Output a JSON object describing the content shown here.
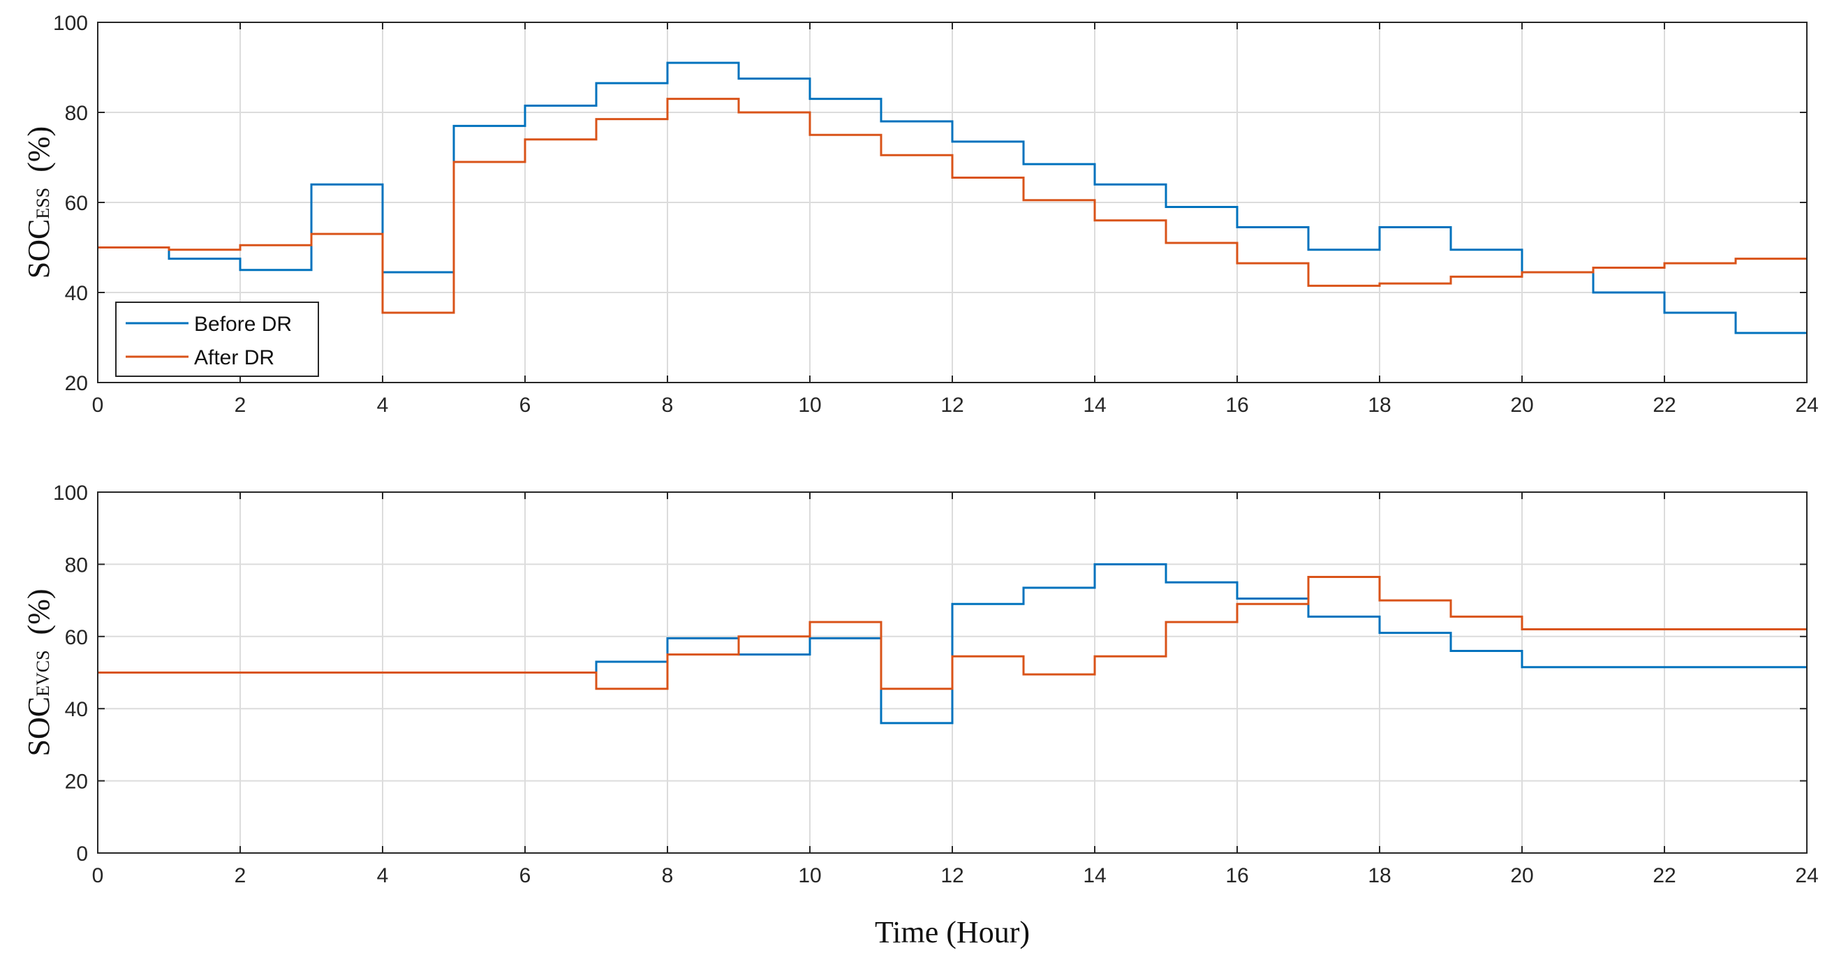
{
  "chart_data": [
    {
      "type": "line",
      "step": true,
      "ylabel_main": "SOC",
      "ylabel_sub": "ESS",
      "ylabel_unit": "(%)",
      "xlim": [
        0,
        24
      ],
      "ylim": [
        20,
        100
      ],
      "xticks": [
        0,
        2,
        4,
        6,
        8,
        10,
        12,
        14,
        16,
        18,
        20,
        22,
        24
      ],
      "yticks": [
        20,
        40,
        60,
        80,
        100
      ],
      "grid": true,
      "legend": {
        "position": "bottom-left",
        "entries": [
          "Before DR",
          "After DR"
        ]
      },
      "series": [
        {
          "name": "Before DR",
          "color": "#0072BD",
          "values": [
            50,
            47.5,
            45,
            64,
            44.5,
            77,
            81.5,
            86.5,
            91,
            87.5,
            83,
            78,
            73.5,
            68.5,
            64,
            59,
            54.5,
            49.5,
            54.5,
            49.5,
            44.5,
            40,
            35.5,
            31
          ]
        },
        {
          "name": "After DR",
          "color": "#D95319",
          "values": [
            50,
            49.5,
            50.5,
            53,
            35.5,
            69,
            74,
            78.5,
            83,
            80,
            75,
            70.5,
            65.5,
            60.5,
            56,
            51,
            46.5,
            41.5,
            42,
            43.5,
            44.5,
            45.5,
            46.5,
            47.5
          ]
        }
      ]
    },
    {
      "type": "line",
      "step": true,
      "ylabel_main": "SOC",
      "ylabel_sub": "EVCS",
      "ylabel_unit": "(%)",
      "xlabel": "Time (Hour)",
      "xlim": [
        0,
        24
      ],
      "ylim": [
        0,
        100
      ],
      "xticks": [
        0,
        2,
        4,
        6,
        8,
        10,
        12,
        14,
        16,
        18,
        20,
        22,
        24
      ],
      "yticks": [
        0,
        20,
        40,
        60,
        80,
        100
      ],
      "grid": true,
      "series": [
        {
          "name": "Before DR",
          "color": "#0072BD",
          "values": [
            50,
            50,
            50,
            50,
            50,
            50,
            50,
            53,
            59.5,
            55,
            59.5,
            36,
            69,
            73.5,
            80,
            75,
            70.5,
            65.5,
            61,
            56,
            51.5,
            51.5,
            51.5,
            51.5
          ]
        },
        {
          "name": "After DR",
          "color": "#D95319",
          "values": [
            50,
            50,
            50,
            50,
            50,
            50,
            50,
            45.5,
            55,
            60,
            64,
            45.5,
            54.5,
            49.5,
            54.5,
            64,
            69,
            76.5,
            70,
            65.5,
            62,
            62,
            62,
            62
          ]
        }
      ]
    }
  ]
}
